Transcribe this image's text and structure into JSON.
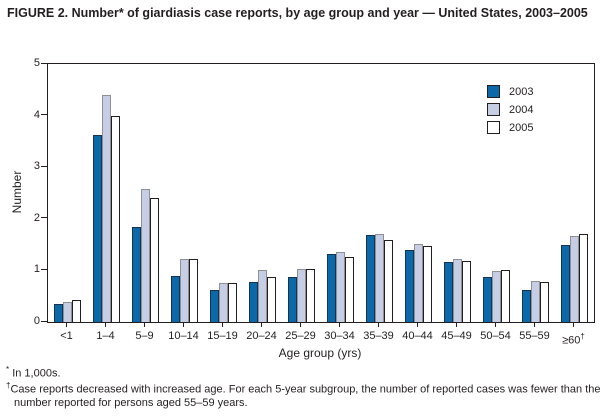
{
  "figure": {
    "title": "FIGURE 2. Number* of giardiasis case reports, by age group and year — United States, 2003–2005",
    "footnotes": [
      {
        "symbol": "*",
        "text": "In 1,000s."
      },
      {
        "symbol": "†",
        "text": "Case reports decreased with increased age. For each 5-year subgroup, the number of reported cases was fewer than the number reported for persons aged 55–59 years."
      }
    ]
  },
  "chart_data": {
    "type": "bar",
    "title": "FIGURE 2. Number* of giardiasis case reports, by age group and year — United States, 2003–2005",
    "categories": [
      "<1",
      "1–4",
      "5–9",
      "10–14",
      "15–19",
      "20–24",
      "25–29",
      "30–34",
      "35–39",
      "40–44",
      "45–49",
      "50–54",
      "55–59",
      "≥60†"
    ],
    "series": [
      {
        "name": "2003",
        "color": "#0b69a9",
        "border": "#16344f",
        "values": [
          0.34,
          3.63,
          1.85,
          0.9,
          0.62,
          0.77,
          0.88,
          1.31,
          1.68,
          1.4,
          1.17,
          0.88,
          0.63,
          1.49
        ]
      },
      {
        "name": "2004",
        "color": "#c6cee6",
        "border": "#8e9094",
        "values": [
          0.39,
          4.4,
          2.58,
          1.22,
          0.75,
          1.0,
          1.03,
          1.36,
          1.71,
          1.52,
          1.23,
          0.98,
          0.8,
          1.66
        ]
      },
      {
        "name": "2005",
        "color": "#ffffff",
        "border": "#231f20",
        "values": [
          0.43,
          4.0,
          2.4,
          1.22,
          0.75,
          0.87,
          1.03,
          1.26,
          1.58,
          1.48,
          1.19,
          1.0,
          0.77,
          1.7
        ]
      }
    ],
    "xlabel": "Age group (yrs)",
    "ylabel": "Number",
    "ylim": [
      0,
      5
    ],
    "yticks": [
      0,
      1,
      2,
      3,
      4,
      5
    ],
    "grid": false,
    "legend_position": "inside-top-right",
    "units_note": "In 1,000s"
  }
}
